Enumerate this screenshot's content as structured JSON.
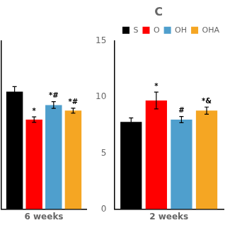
{
  "chart_data": [
    {
      "type": "bar",
      "xlabel": "6 weeks",
      "categories": [
        null
      ],
      "ylim": [
        0,
        15
      ],
      "grid": false,
      "tick_labels": false,
      "series": [
        {
          "name": "S",
          "color": "#000000",
          "values": [
            10.5
          ],
          "errors": [
            0.45
          ]
        },
        {
          "name": "O",
          "color": "#ff0000",
          "values": [
            8.0
          ],
          "errors": [
            0.25
          ],
          "annotations": [
            "*"
          ]
        },
        {
          "name": "OH",
          "color": "#4f9fcd",
          "values": [
            9.3
          ],
          "errors": [
            0.3
          ],
          "annotations": [
            "*#"
          ]
        },
        {
          "name": "OHA",
          "color": "#f5a623",
          "values": [
            8.8
          ],
          "errors": [
            0.22
          ],
          "annotations": [
            "*#"
          ]
        }
      ]
    },
    {
      "type": "bar",
      "title": "C",
      "xlabel": "2 weeks",
      "categories": [
        null
      ],
      "ylim": [
        0,
        15
      ],
      "yticks": [
        0,
        5,
        10,
        15
      ],
      "grid": false,
      "tick_labels": "y",
      "legend": "upper right",
      "series": [
        {
          "name": "S",
          "color": "#000000",
          "values": [
            7.8
          ],
          "errors": [
            0.35
          ]
        },
        {
          "name": "O",
          "color": "#ff0000",
          "values": [
            9.7
          ],
          "errors": [
            0.75
          ],
          "annotations": [
            "*"
          ]
        },
        {
          "name": "OH",
          "color": "#4f9fcd",
          "values": [
            8.0
          ],
          "errors": [
            0.28
          ],
          "annotations": [
            "#"
          ]
        },
        {
          "name": "OHA",
          "color": "#f5a623",
          "values": [
            8.8
          ],
          "errors": [
            0.32
          ],
          "annotations": [
            "*&"
          ]
        }
      ]
    }
  ]
}
